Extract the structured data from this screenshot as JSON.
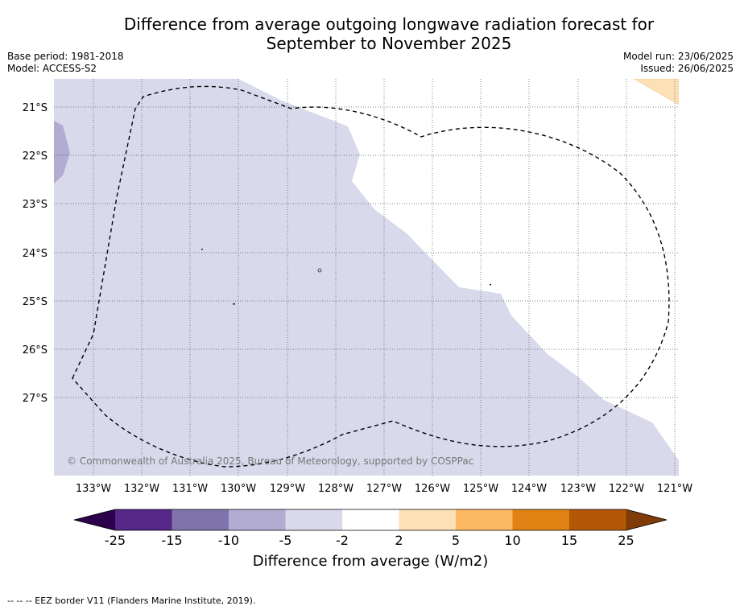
{
  "title_line1": "Difference from average outgoing longwave radiation forecast for",
  "title_line2": "September to November 2025",
  "base_period": "Base period: 1981-2018",
  "model": "Model: ACCESS-S2",
  "model_run": "Model run: 23/06/2025",
  "issued": "Issued: 26/06/2025",
  "map": {
    "lat_labels": [
      "21°S",
      "22°S",
      "23°S",
      "24°S",
      "25°S",
      "26°S",
      "27°S"
    ],
    "lon_labels": [
      "133°W",
      "132°W",
      "131°W",
      "130°W",
      "129°W",
      "128°W",
      "127°W",
      "126°W",
      "125°W",
      "124°W",
      "123°W",
      "122°W",
      "121°W"
    ],
    "copyright": "© Commonwealth of Australia 2025, Bureau of Meteorology, supported by COSPPac"
  },
  "colorbar": {
    "ticks": [
      "-25",
      "-15",
      "-10",
      "-5",
      "-2",
      "2",
      "5",
      "10",
      "15",
      "25"
    ],
    "colors": [
      "#2d004b",
      "#542788",
      "#8073ac",
      "#b2abd2",
      "#d8daeb",
      "#ffffff",
      "#fee0b6",
      "#fdb863",
      "#e08214",
      "#b35806",
      "#7f3b08"
    ],
    "label": "Difference from average (W/m2)"
  },
  "footnote": "--  --  -- EEZ border V11 (Flanders Marine Institute, 2019)."
}
